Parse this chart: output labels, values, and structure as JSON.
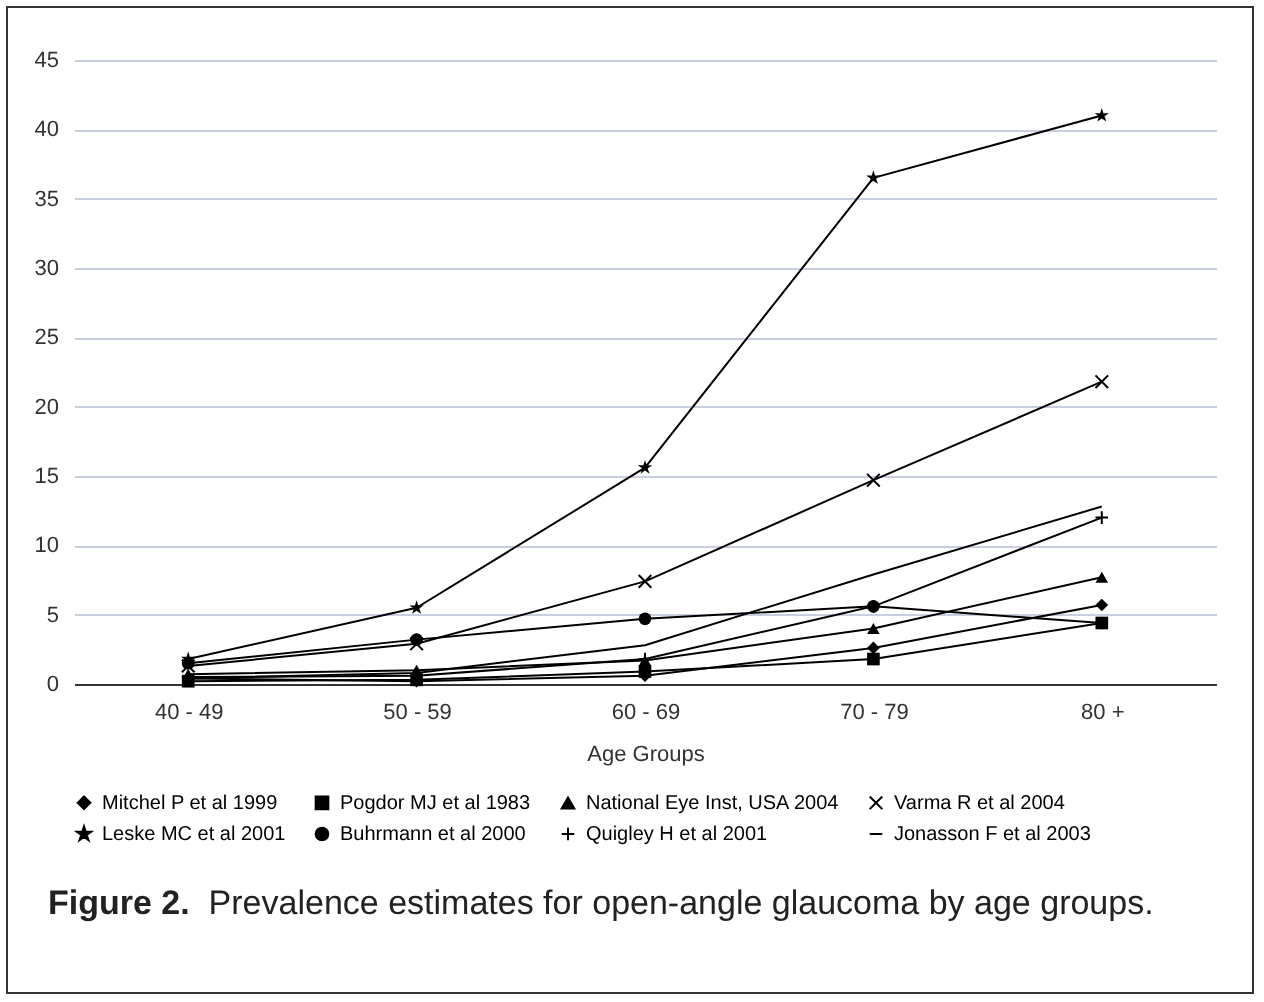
{
  "chart_data": {
    "type": "line",
    "title": "Figure 2.  Prevalence estimates for open-angle glaucoma by age groups.",
    "xlabel": "Age Groups",
    "categories": [
      "40 - 49",
      "50 - 59",
      "60 - 69",
      "70 - 79",
      "80 +"
    ],
    "series": [
      {
        "name": "Mitchel P et al 1999",
        "color": "#000000",
        "marker": "diamond",
        "values": [
          0.4,
          0.2,
          0.6,
          2.6,
          5.7
        ]
      },
      {
        "name": "Pogdor MJ et al 1983",
        "color": "#000000",
        "marker": "square",
        "values": [
          0.2,
          0.3,
          0.9,
          1.8,
          4.4
        ]
      },
      {
        "name": "National Eye Inst, USA 2004",
        "color": "#000000",
        "marker": "triangle",
        "values": [
          0.7,
          1.0,
          1.7,
          4.0,
          7.7
        ]
      },
      {
        "name": "Varma R et al 2004",
        "color": "#000000",
        "marker": "cross",
        "values": [
          1.3,
          2.9,
          7.4,
          14.7,
          21.8
        ]
      },
      {
        "name": "Leske MC et al 2001",
        "color": "#000000",
        "marker": "star",
        "values": [
          1.8,
          5.5,
          15.6,
          36.5,
          41.0
        ]
      },
      {
        "name": "Buhrmann et al 2000",
        "color": "#000000",
        "marker": "circle",
        "values": [
          1.5,
          3.2,
          4.7,
          5.6,
          4.4
        ]
      },
      {
        "name": "Quigley H et al 2001",
        "color": "#000000",
        "marker": "cross",
        "values": [
          0.5,
          0.6,
          1.8,
          5.6,
          12.0
        ]
      },
      {
        "name": "Jonasson F et al 2003",
        "color": "#000000",
        "marker": "none",
        "values": [
          0.4,
          0.8,
          2.8,
          7.9,
          12.8
        ]
      }
    ],
    "ylim": [
      0,
      45
    ],
    "yticks": [
      0,
      5,
      10,
      15,
      20,
      25,
      30,
      35,
      40,
      45
    ],
    "grid": "y",
    "legend": "bottom",
    "line_style": "solid"
  }
}
